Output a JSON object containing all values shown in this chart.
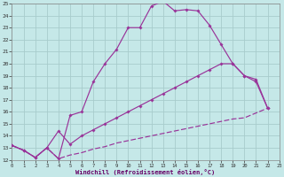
{
  "xlabel": "Windchill (Refroidissement éolien,°C)",
  "bg_color": "#c5e8e8",
  "grid_color": "#a8cccc",
  "line_color": "#993399",
  "xlim": [
    0,
    23
  ],
  "ylim": [
    12,
    25
  ],
  "xtick_labels": [
    "0",
    "1",
    "2",
    "3",
    "4",
    "5",
    "6",
    "7",
    "8",
    "9",
    "10",
    "11",
    "12",
    "13",
    "14",
    "15",
    "16",
    "17",
    "18",
    "19",
    "20",
    "21",
    "22",
    "23"
  ],
  "ytick_labels": [
    "12",
    "13",
    "14",
    "15",
    "16",
    "17",
    "18",
    "19",
    "20",
    "21",
    "22",
    "23",
    "24",
    "25"
  ],
  "line1_x": [
    0,
    1,
    2,
    3,
    4,
    5,
    6,
    7,
    8,
    9,
    10,
    11,
    12,
    13,
    14,
    15,
    16,
    17,
    18,
    19,
    20,
    21,
    22
  ],
  "line1_y": [
    13.2,
    12.8,
    12.2,
    13.0,
    12.1,
    15.7,
    16.0,
    18.5,
    20.0,
    21.2,
    23.0,
    23.0,
    24.8,
    25.2,
    24.4,
    24.5,
    24.4,
    23.2,
    21.6,
    20.0,
    19.0,
    18.7,
    16.3
  ],
  "line2_x": [
    0,
    1,
    2,
    3,
    4,
    5,
    6,
    7,
    8,
    9,
    10,
    11,
    12,
    13,
    14,
    15,
    16,
    17,
    18,
    19,
    20,
    21,
    22
  ],
  "line2_y": [
    13.2,
    12.8,
    12.2,
    13.0,
    14.4,
    13.3,
    14.0,
    14.5,
    15.0,
    15.5,
    16.0,
    16.5,
    17.0,
    17.5,
    18.0,
    18.5,
    19.0,
    19.5,
    20.0,
    20.0,
    19.0,
    18.5,
    16.3
  ],
  "line3_x": [
    0,
    1,
    2,
    3,
    4,
    5,
    6,
    7,
    8,
    9,
    10,
    11,
    12,
    13,
    14,
    15,
    16,
    17,
    18,
    19,
    20,
    21,
    22
  ],
  "line3_y": [
    13.2,
    12.8,
    12.2,
    13.0,
    12.1,
    12.4,
    12.6,
    12.9,
    13.1,
    13.4,
    13.6,
    13.8,
    14.0,
    14.2,
    14.4,
    14.6,
    14.8,
    15.0,
    15.2,
    15.4,
    15.5,
    15.9,
    16.3
  ]
}
